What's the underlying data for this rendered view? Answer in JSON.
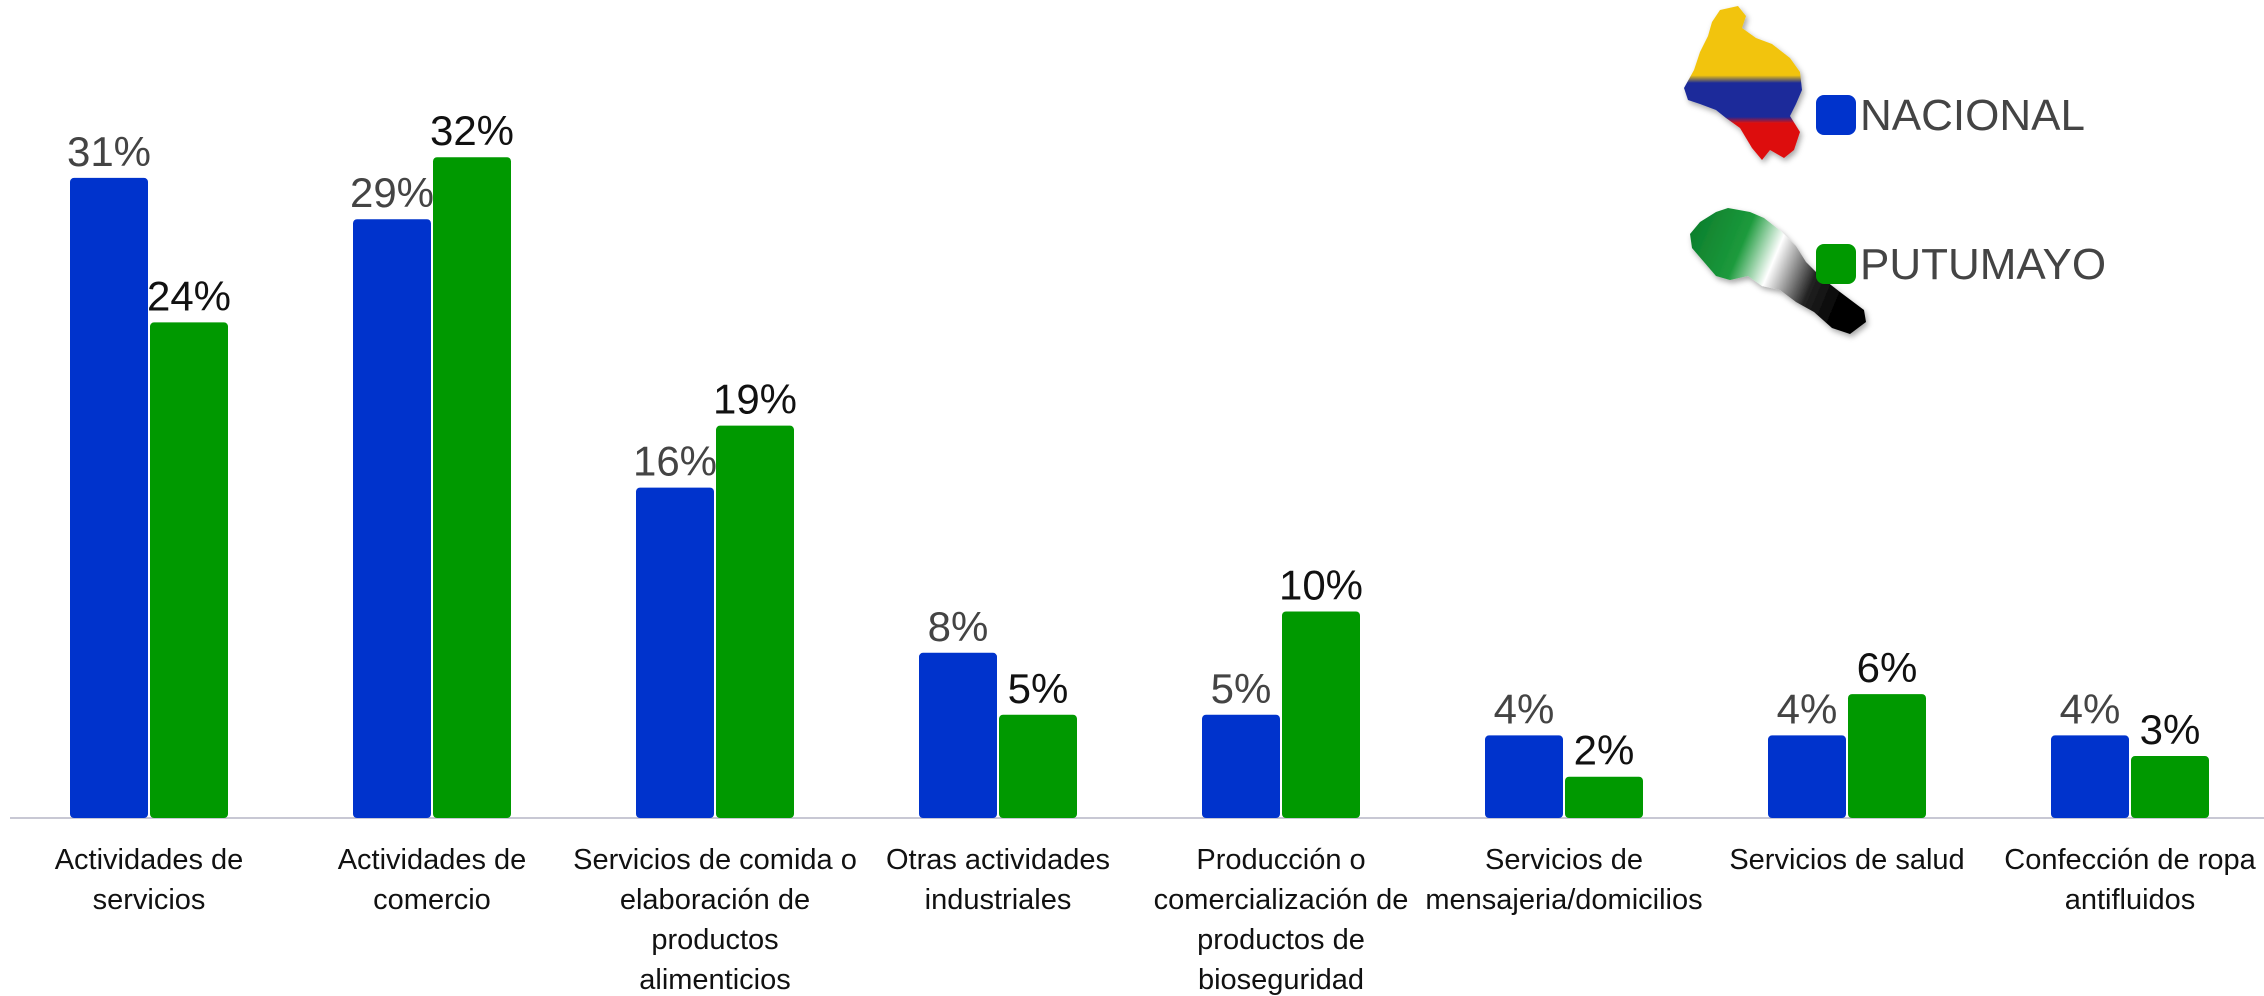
{
  "chart_data": {
    "type": "bar",
    "categories": [
      [
        "Actividades de",
        "servicios"
      ],
      [
        "Actividades de",
        "comercio"
      ],
      [
        "Servicios de comida o",
        "elaboración de",
        "productos",
        "alimenticios"
      ],
      [
        "Otras actividades",
        "industriales"
      ],
      [
        "Producción o",
        "comercialización de",
        "productos de",
        "bioseguridad"
      ],
      [
        "Servicios de",
        "mensajeria/domicilios"
      ],
      [
        "Servicios de salud"
      ],
      [
        "Confección de ropa",
        "antifluidos"
      ]
    ],
    "series": [
      {
        "name": "NACIONAL",
        "color": "#0033cc",
        "label_color": "#444444",
        "values": [
          31,
          29,
          16,
          8,
          5,
          4,
          4,
          4
        ],
        "labels": [
          "31%",
          "29%",
          "16%",
          "8%",
          "5%",
          "4%",
          "4%",
          "4%"
        ]
      },
      {
        "name": "PUTUMAYO",
        "color": "#009900",
        "label_color": "#111111",
        "values": [
          24,
          32,
          19,
          5,
          10,
          2,
          6,
          3
        ],
        "labels": [
          "24%",
          "32%",
          "19%",
          "5%",
          "10%",
          "2%",
          "6%",
          "3%"
        ]
      }
    ],
    "ylim": [
      0,
      37
    ],
    "grid": false,
    "legend_position": "top-right",
    "legend_icons": [
      "colombia-map-icon",
      "putumayo-map-icon"
    ]
  }
}
